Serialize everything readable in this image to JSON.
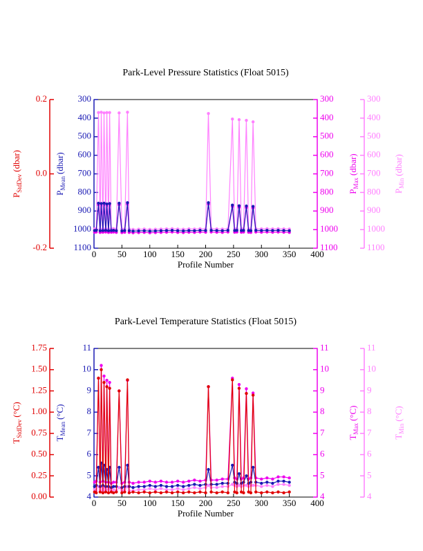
{
  "chart_data": [
    {
      "type": "line",
      "title": "Park-Level Pressure Statistics (Float 5015)",
      "xlabel": "Profile Number",
      "xlim": [
        0,
        400
      ],
      "xticks": [
        0,
        50,
        100,
        150,
        200,
        250,
        300,
        350,
        400
      ],
      "x": [
        1,
        4,
        8,
        11,
        13,
        16,
        18,
        21,
        23,
        26,
        28,
        31,
        35,
        40,
        45,
        50,
        55,
        60,
        63,
        70,
        80,
        90,
        100,
        110,
        120,
        130,
        140,
        150,
        160,
        170,
        180,
        190,
        200,
        205,
        210,
        220,
        230,
        240,
        248,
        252,
        256,
        260,
        264,
        268,
        273,
        277,
        281,
        285,
        290,
        300,
        310,
        320,
        330,
        340,
        350
      ],
      "axes": [
        {
          "id": "sd",
          "side": "left-outer",
          "color": "#e00000",
          "label": {
            "main": "P",
            "sub": "StdDev",
            "unit": "(dbar)"
          },
          "lim": [
            -0.2,
            0.2
          ],
          "ticks": [
            -0.2,
            {
              "value": 0,
              "label": "0.0"
            },
            0.2
          ]
        },
        {
          "id": "mean",
          "side": "left",
          "color": "#1a1ab4",
          "label": {
            "main": "P",
            "sub": "Mean",
            "unit": "(dbar)"
          },
          "lim": [
            1100,
            300
          ],
          "ticks": [
            300,
            400,
            500,
            600,
            700,
            800,
            900,
            1000,
            1100
          ]
        },
        {
          "id": "max",
          "side": "right",
          "color": "#ee00ee",
          "label": {
            "main": "P",
            "sub": "Max",
            "unit": "(dbar)"
          },
          "lim": [
            1100,
            300
          ],
          "ticks": [
            300,
            400,
            500,
            600,
            700,
            800,
            900,
            1000,
            1100
          ]
        },
        {
          "id": "min",
          "side": "right-outer",
          "color": "#ff80ff",
          "label": {
            "main": "P",
            "sub": "Min",
            "unit": "(dbar)"
          },
          "lim": [
            1100,
            300
          ],
          "ticks": [
            300,
            400,
            500,
            600,
            700,
            800,
            900,
            1000,
            1100
          ]
        }
      ],
      "series": [
        {
          "axis": "max",
          "color": "#ee00ee",
          "values": [
            1014,
            1013,
            866,
            1015,
            868,
            1014,
            866,
            1013,
            870,
            1015,
            868,
            1014,
            1013,
            1015,
            866,
            1016,
            1014,
            863,
            1015,
            1017,
            1016,
            1015,
            1017,
            1016,
            1015,
            1014,
            1013,
            1015,
            1016,
            1014,
            1015,
            1013,
            1014,
            863,
            1013,
            1014,
            1015,
            1013,
            876,
            1014,
            1013,
            880,
            1014,
            1013,
            881,
            1014,
            1015,
            883,
            1013,
            1014,
            1013,
            1014,
            1013,
            1014,
            1015
          ]
        },
        {
          "axis": "min",
          "color": "#ff80ff",
          "values": [
            996,
            995,
            370,
            997,
            368,
            996,
            372,
            995,
            370,
            997,
            370,
            996,
            995,
            997,
            372,
            998,
            996,
            368,
            997,
            999,
            998,
            997,
            999,
            998,
            997,
            996,
            995,
            997,
            998,
            996,
            997,
            995,
            996,
            375,
            995,
            996,
            997,
            995,
            405,
            996,
            995,
            408,
            996,
            995,
            412,
            996,
            997,
            420,
            995,
            996,
            995,
            996,
            995,
            996,
            997
          ]
        },
        {
          "axis": "mean",
          "color": "#1a1ab4",
          "values": [
            1005,
            1004,
            858,
            1006,
            860,
            1005,
            858,
            1004,
            862,
            1006,
            860,
            1005,
            1004,
            1006,
            858,
            1007,
            1005,
            855,
            1006,
            1008,
            1007,
            1006,
            1008,
            1007,
            1006,
            1005,
            1004,
            1006,
            1007,
            1005,
            1006,
            1004,
            1005,
            855,
            1004,
            1005,
            1006,
            1004,
            868,
            1005,
            1004,
            872,
            1005,
            1004,
            873,
            1005,
            1006,
            875,
            1004,
            1005,
            1004,
            1005,
            1004,
            1005,
            1006
          ]
        }
      ]
    },
    {
      "type": "line",
      "title": "Park-Level Temperature Statistics (Float 5015)",
      "xlabel": "Profile Number",
      "xlim": [
        0,
        400
      ],
      "xticks": [
        0,
        50,
        100,
        150,
        200,
        250,
        300,
        350,
        400
      ],
      "x": [
        1,
        4,
        8,
        11,
        13,
        16,
        18,
        21,
        23,
        26,
        28,
        31,
        35,
        40,
        45,
        50,
        55,
        60,
        63,
        70,
        80,
        90,
        100,
        110,
        120,
        130,
        140,
        150,
        160,
        170,
        180,
        190,
        200,
        205,
        210,
        220,
        230,
        240,
        248,
        252,
        256,
        260,
        264,
        268,
        273,
        277,
        281,
        285,
        290,
        300,
        310,
        320,
        330,
        340,
        350
      ],
      "axes": [
        {
          "id": "sd",
          "side": "left-outer",
          "color": "#e00000",
          "label": {
            "main": "T",
            "sub": "StdDev",
            "unit": "(°C)"
          },
          "lim": [
            0,
            1.75
          ],
          "ticks": [
            {
              "value": 0,
              "label": "0.00"
            },
            0.25,
            {
              "value": 0.5,
              "label": "0.50"
            },
            0.75,
            {
              "value": 1,
              "label": "1.00"
            },
            1.25,
            {
              "value": 1.5,
              "label": "1.50"
            },
            1.75
          ]
        },
        {
          "id": "mean",
          "side": "left",
          "color": "#1a1ab4",
          "label": {
            "main": "T",
            "sub": "Mean",
            "unit": "(°C)"
          },
          "lim": [
            4,
            11
          ],
          "ticks": [
            4,
            5,
            6,
            7,
            8,
            9,
            10,
            11
          ]
        },
        {
          "id": "max",
          "side": "right",
          "color": "#ee00ee",
          "label": {
            "main": "T",
            "sub": "Max",
            "unit": "(°C)"
          },
          "lim": [
            4,
            11
          ],
          "ticks": [
            4,
            5,
            6,
            7,
            8,
            9,
            10,
            11
          ]
        },
        {
          "id": "min",
          "side": "right-outer",
          "color": "#ff80ff",
          "label": {
            "main": "T",
            "sub": "Min",
            "unit": "(°C)"
          },
          "lim": [
            4,
            11
          ],
          "ticks": [
            4,
            5,
            6,
            7,
            8,
            9,
            10,
            11
          ]
        }
      ],
      "series": [
        {
          "axis": "max",
          "color": "#ee00ee",
          "values": [
            4.7,
            4.75,
            9.6,
            4.7,
            10.2,
            4.75,
            9.7,
            4.7,
            9.5,
            4.7,
            9.4,
            4.65,
            4.7,
            4.7,
            9.0,
            4.65,
            4.7,
            9.5,
            4.7,
            4.65,
            4.7,
            4.7,
            4.75,
            4.7,
            4.75,
            4.7,
            4.7,
            4.75,
            4.7,
            4.75,
            4.8,
            4.75,
            4.8,
            9.2,
            4.8,
            4.8,
            4.85,
            4.85,
            9.6,
            4.9,
            4.85,
            9.3,
            4.85,
            4.9,
            9.1,
            4.85,
            4.9,
            8.9,
            4.9,
            4.85,
            4.9,
            4.85,
            4.95,
            4.95,
            4.9
          ]
        },
        {
          "axis": "min",
          "color": "#ff80ff",
          "values": [
            4.35,
            4.3,
            4.5,
            4.35,
            4.5,
            4.3,
            4.45,
            4.35,
            4.5,
            4.35,
            4.45,
            4.3,
            4.35,
            4.3,
            4.45,
            4.3,
            4.35,
            4.5,
            4.3,
            4.3,
            4.35,
            4.35,
            4.4,
            4.35,
            4.4,
            4.35,
            4.35,
            4.4,
            4.35,
            4.4,
            4.45,
            4.4,
            4.45,
            4.55,
            4.45,
            4.45,
            4.5,
            4.5,
            4.6,
            4.55,
            4.5,
            4.55,
            4.5,
            4.55,
            4.55,
            4.5,
            4.55,
            4.55,
            4.55,
            4.5,
            4.55,
            4.5,
            4.6,
            4.6,
            4.55
          ]
        },
        {
          "axis": "mean",
          "color": "#1a1ab4",
          "values": [
            4.5,
            4.55,
            5.4,
            4.5,
            5.6,
            4.55,
            5.5,
            4.5,
            5.3,
            4.5,
            5.4,
            4.45,
            4.5,
            4.5,
            5.4,
            4.45,
            4.5,
            5.5,
            4.5,
            4.45,
            4.5,
            4.5,
            4.55,
            4.5,
            4.55,
            4.5,
            4.5,
            4.55,
            4.5,
            4.55,
            4.6,
            4.55,
            4.6,
            5.3,
            4.6,
            4.6,
            4.65,
            4.65,
            5.5,
            4.7,
            4.65,
            5.1,
            4.65,
            4.7,
            5.0,
            4.65,
            4.7,
            5.4,
            4.7,
            4.65,
            4.7,
            4.65,
            4.75,
            4.75,
            4.7
          ]
        },
        {
          "axis": "sd",
          "color": "#e00000",
          "values": [
            0.06,
            0.05,
            1.4,
            0.06,
            1.5,
            0.05,
            1.35,
            0.06,
            1.3,
            0.05,
            1.28,
            0.06,
            0.05,
            0.06,
            1.25,
            0.05,
            0.06,
            1.38,
            0.05,
            0.06,
            0.05,
            0.06,
            0.05,
            0.06,
            0.05,
            0.06,
            0.05,
            0.06,
            0.05,
            0.06,
            0.05,
            0.06,
            0.05,
            1.3,
            0.06,
            0.05,
            0.06,
            0.05,
            1.38,
            0.06,
            0.05,
            1.28,
            0.06,
            0.05,
            1.22,
            0.06,
            0.05,
            1.2,
            0.06,
            0.05,
            0.06,
            0.05,
            0.06,
            0.05,
            0.06
          ]
        }
      ]
    }
  ]
}
